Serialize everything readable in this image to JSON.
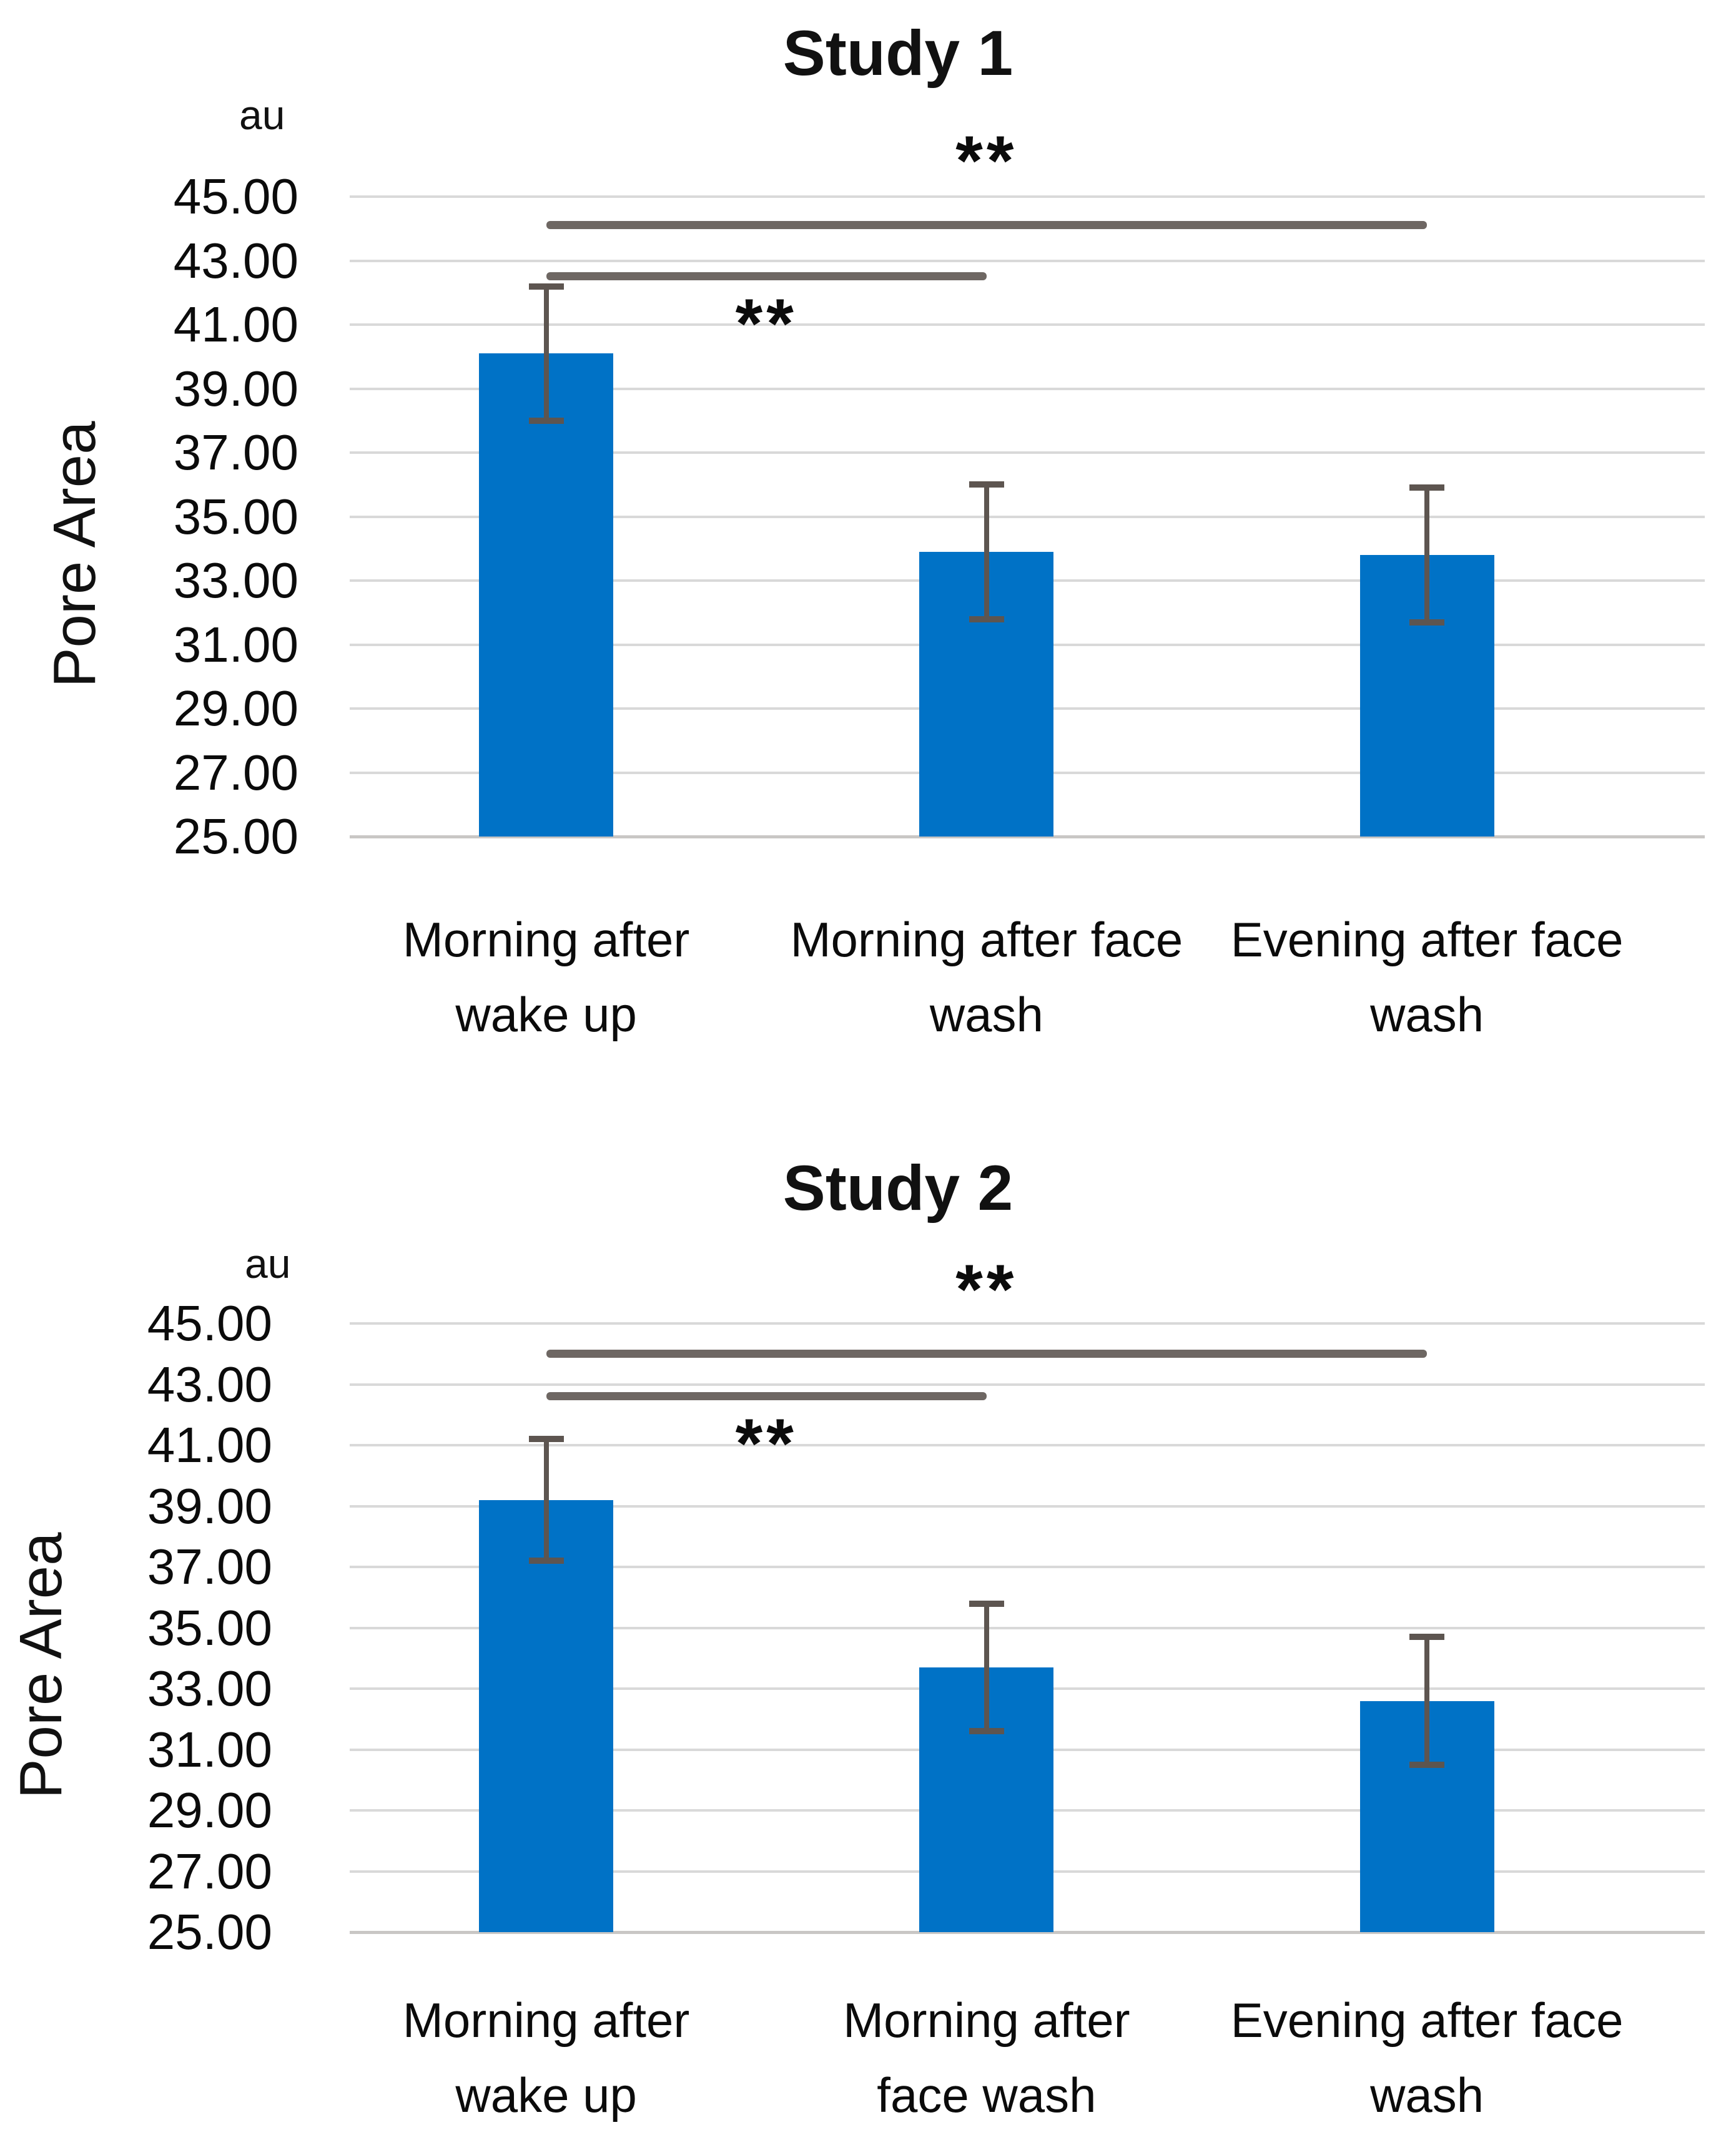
{
  "figure": {
    "background": "#ffffff",
    "text_color": "#0b0b0b"
  },
  "chart_data": [
    {
      "type": "bar",
      "title": "Study 1",
      "unit_label": "au",
      "ylabel": "Pore Area",
      "xlabel": "",
      "categories": [
        [
          "Morning after",
          "wake up"
        ],
        [
          "Morning after face",
          "wash"
        ],
        [
          "Evening after face",
          "wash"
        ]
      ],
      "values": [
        40.1,
        33.9,
        33.8
      ],
      "errors": [
        2.1,
        2.1,
        2.1
      ],
      "ylim": [
        25,
        45
      ],
      "ytick_step": 2,
      "ytick_labels": [
        "45.00",
        "43.00",
        "41.00",
        "39.00",
        "37.00",
        "35.00",
        "33.00",
        "31.00",
        "29.00",
        "27.00",
        "25.00"
      ],
      "grid": true,
      "legend": "none",
      "bar_color": "#0072C6",
      "error_bar_color": "#5d5550",
      "significance_line_color": "#6e6763",
      "gridline_color": "#d9d9d9",
      "significance": [
        {
          "from": 0,
          "to": 2,
          "value": 44.1,
          "label": "**",
          "label_side": "above"
        },
        {
          "from": 0,
          "to": 1,
          "value": 42.5,
          "label": "**",
          "label_side": "below"
        }
      ]
    },
    {
      "type": "bar",
      "title": "Study 2",
      "unit_label": "au",
      "ylabel": "Pore Area",
      "xlabel": "",
      "categories": [
        [
          "Morning after",
          "wake up"
        ],
        [
          "Morning after",
          "face wash"
        ],
        [
          "Evening after face",
          "wash"
        ]
      ],
      "values": [
        39.2,
        33.7,
        32.6
      ],
      "errors": [
        2.0,
        2.1,
        2.1
      ],
      "ylim": [
        25,
        45
      ],
      "ytick_step": 2,
      "ytick_labels": [
        "45.00",
        "43.00",
        "41.00",
        "39.00",
        "37.00",
        "35.00",
        "33.00",
        "31.00",
        "29.00",
        "27.00",
        "25.00"
      ],
      "grid": true,
      "legend": "none",
      "bar_color": "#0072C6",
      "error_bar_color": "#5d5550",
      "significance_line_color": "#6e6763",
      "gridline_color": "#d9d9d9",
      "significance": [
        {
          "from": 0,
          "to": 2,
          "value": 44.0,
          "label": "**",
          "label_side": "above"
        },
        {
          "from": 0,
          "to": 1,
          "value": 42.6,
          "label": "**",
          "label_side": "below"
        }
      ]
    }
  ]
}
